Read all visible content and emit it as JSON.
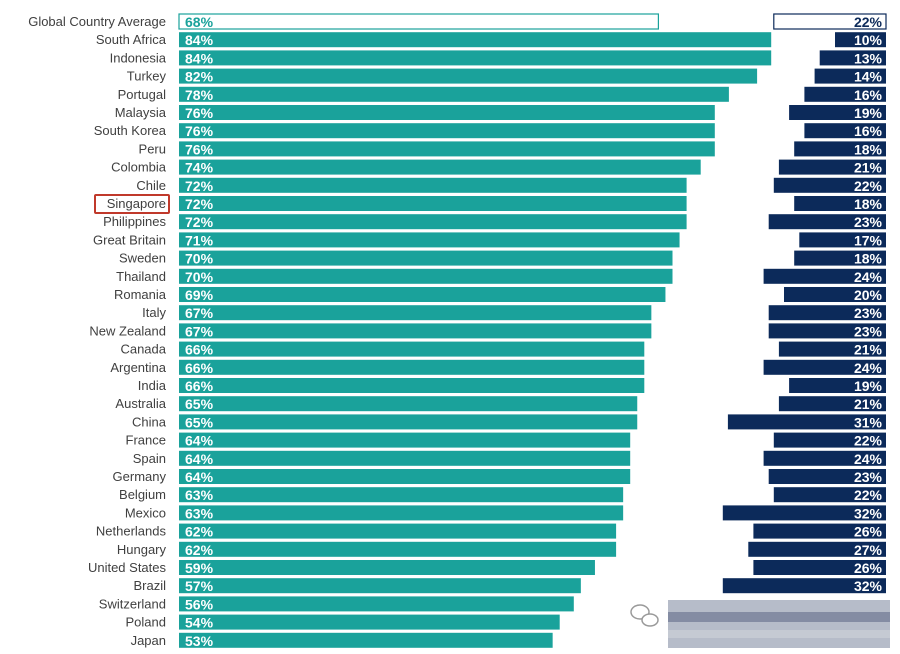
{
  "chart_data": {
    "type": "bar",
    "title": "",
    "value_format": "percent",
    "colors": {
      "left": "#1aa29b",
      "right": "#0c2a5a",
      "highlight_outline": "#c0392b",
      "label_text": "#404040"
    },
    "highlight": "Singapore",
    "categories": [
      "Global Country Average",
      "South Africa",
      "Indonesia",
      "Turkey",
      "Portugal",
      "Malaysia",
      "South Korea",
      "Peru",
      "Colombia",
      "Chile",
      "Singapore",
      "Philippines",
      "Great Britain",
      "Sweden",
      "Thailand",
      "Romania",
      "Italy",
      "New Zealand",
      "Canada",
      "Argentina",
      "India",
      "Australia",
      "China",
      "France",
      "Spain",
      "Germany",
      "Belgium",
      "Mexico",
      "Netherlands",
      "Hungary",
      "United States",
      "Brazil",
      "Switzerland",
      "Poland",
      "Japan"
    ],
    "series": [
      {
        "values": [
          68,
          84,
          84,
          82,
          78,
          76,
          76,
          76,
          74,
          72,
          72,
          72,
          71,
          70,
          70,
          69,
          67,
          67,
          66,
          66,
          66,
          65,
          65,
          64,
          64,
          64,
          63,
          63,
          62,
          62,
          59,
          57,
          56,
          54,
          53
        ]
      },
      {
        "values": [
          22,
          10,
          13,
          14,
          16,
          19,
          16,
          18,
          21,
          22,
          18,
          23,
          17,
          18,
          24,
          20,
          23,
          23,
          21,
          24,
          19,
          21,
          31,
          22,
          24,
          23,
          22,
          32,
          26,
          27,
          26,
          32,
          null,
          null,
          null
        ]
      }
    ]
  }
}
